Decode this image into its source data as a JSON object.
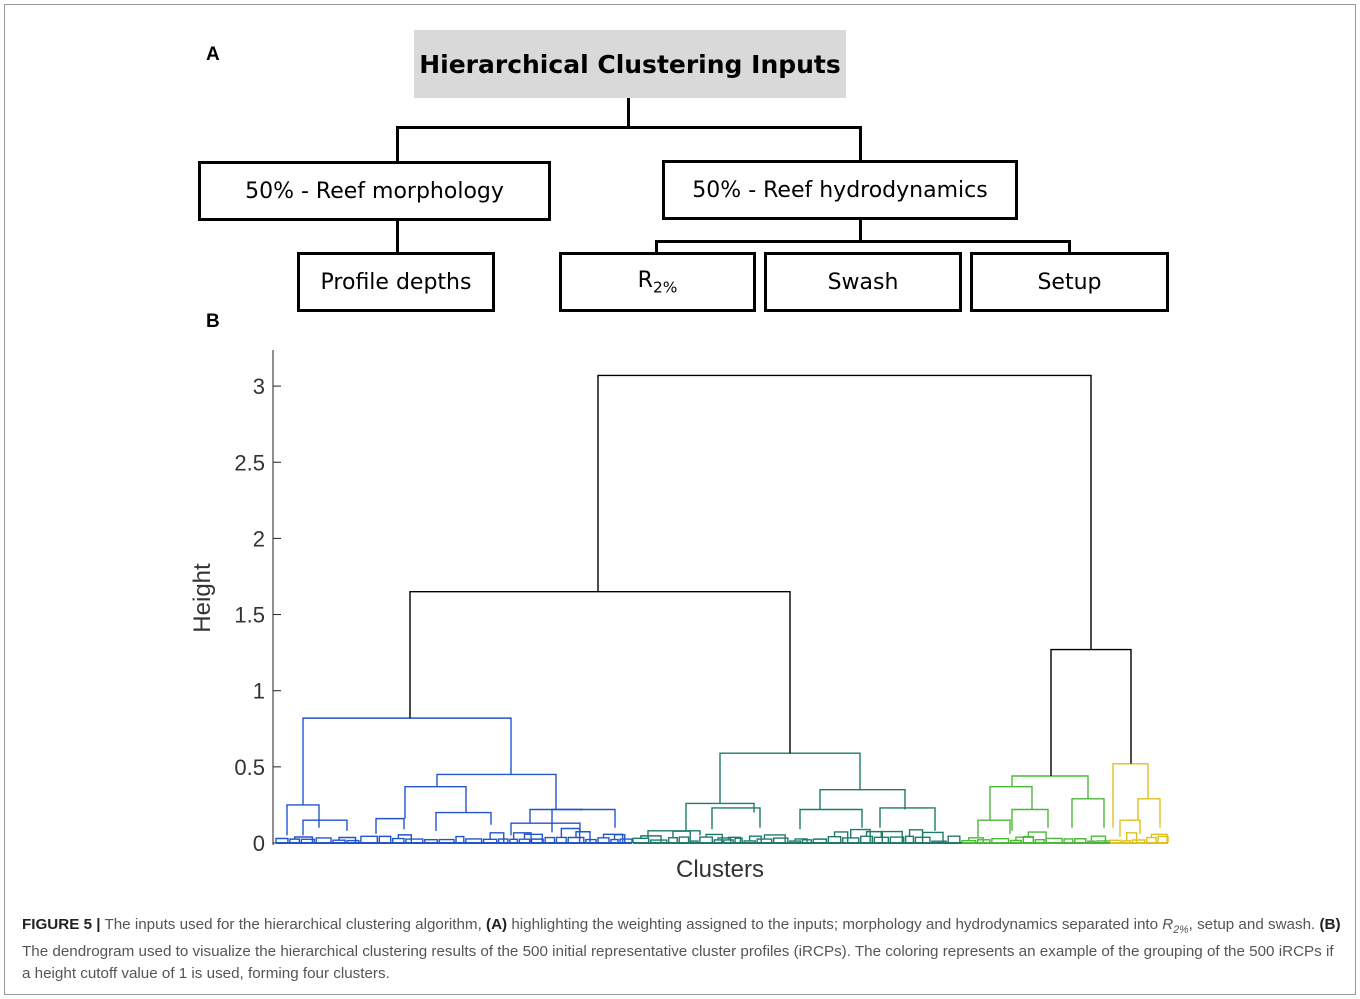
{
  "panel_a": {
    "label": "A",
    "root": "Hierarchical Clustering Inputs",
    "left_node": "50% - Reef morphology",
    "right_node": "50% - Reef hydrodynamics",
    "left_leaf": "Profile depths",
    "right_leaves": {
      "r2_base": "R",
      "r2_sub": "2%",
      "swash": "Swash",
      "setup": "Setup"
    }
  },
  "panel_b": {
    "label": "B"
  },
  "chart_data": {
    "type": "dendrogram",
    "xlabel": "Clusters",
    "ylabel": "Height",
    "ylim": [
      0,
      3.2
    ],
    "yticks": [
      "0",
      "0.5",
      "1",
      "1.5",
      "2",
      "2.5",
      "3"
    ],
    "grid": false,
    "height_cutoff": 1,
    "n_profiles": 500,
    "merge_heights": {
      "root": 3.07,
      "blue_teal": 1.65,
      "green_yellow": 1.27,
      "blue_top": 0.82,
      "teal_top": 0.59,
      "green_top": 0.44,
      "yellow_top": 0.52
    },
    "clusters": [
      {
        "color": "#2255cc"
      },
      {
        "color": "#1f7a6a"
      },
      {
        "color": "#4cb83a"
      },
      {
        "color": "#e0c020"
      }
    ],
    "link_color": "#000000"
  },
  "caption": {
    "figure": "FIGURE 5 |",
    "p1": " The inputs used for the hierarchical clustering algorithm, ",
    "a": "(A)",
    "p2": " highlighting the weighting assigned to the inputs; morphology and hydrodynamics separated into ",
    "r_base": "R",
    "r_sub": "2%",
    "p3": ", setup and swash. ",
    "b": "(B)",
    "p4": " The dendrogram used to visualize the hierarchical clustering results of the 500 initial representative cluster profiles (iRCPs). The coloring represents an example of the grouping of the 500 iRCPs if a height cutoff value of 1 is used, forming four clusters."
  }
}
